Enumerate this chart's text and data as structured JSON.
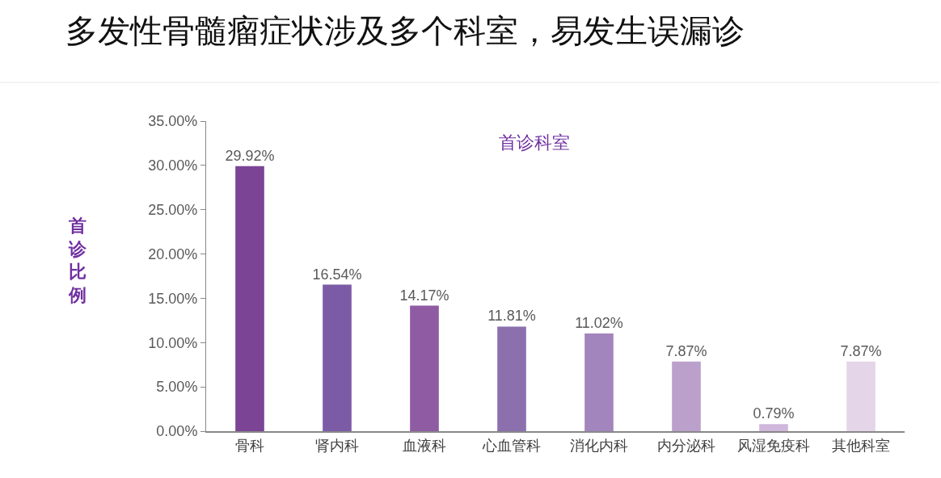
{
  "chart_data": {
    "type": "bar",
    "title": "多发性骨髓瘤症状涉及多个科室，易发生误漏诊",
    "subtitle": "首诊科室",
    "ylabel": "首诊比例",
    "categories": [
      "骨科",
      "肾内科",
      "血液科",
      "心血管科",
      "消化内科",
      "内分泌科",
      "风湿免疫科",
      "其他科室"
    ],
    "values": [
      29.92,
      16.54,
      14.17,
      11.81,
      11.02,
      7.87,
      0.79,
      7.87
    ],
    "value_labels": [
      "29.92%",
      "16.54%",
      "14.17%",
      "11.81%",
      "11.02%",
      "7.87%",
      "0.79%",
      "7.87%"
    ],
    "colors": [
      "#7b4494",
      "#7b5ba6",
      "#8f5ba2",
      "#8c70ae",
      "#a385bd",
      "#bba0cc",
      "#d0b8dc",
      "#e5d5e8"
    ],
    "ylim": [
      0,
      35
    ],
    "yticks": [
      {
        "value": 0,
        "label": "0.00%"
      },
      {
        "value": 5,
        "label": "5.00%"
      },
      {
        "value": 10,
        "label": "10.00%"
      },
      {
        "value": 15,
        "label": "15.00%"
      },
      {
        "value": 20,
        "label": "20.00%"
      },
      {
        "value": 25,
        "label": "25.00%"
      },
      {
        "value": 30,
        "label": "30.00%"
      },
      {
        "value": 35,
        "label": "35.00%"
      }
    ],
    "legend": false
  }
}
